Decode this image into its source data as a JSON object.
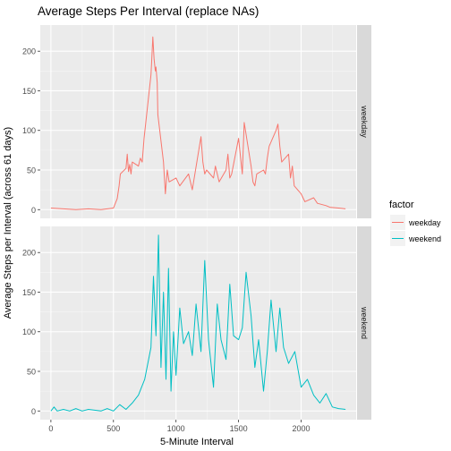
{
  "chart_data": {
    "type": "line",
    "title": "Average Steps Per Interval (replace NAs)",
    "xlabel": "5-Minute Interval",
    "ylabel": "Average Steps per Interval (across 61 days)",
    "xlim": [
      -85,
      2440
    ],
    "ylim": [
      -11,
      233
    ],
    "x_ticks": [
      0,
      500,
      1000,
      1500,
      2000
    ],
    "y_ticks": [
      0,
      50,
      100,
      150,
      200
    ],
    "grid": true,
    "legend": {
      "title": "factor",
      "placement": "right",
      "entries": [
        "weekday",
        "weekend"
      ]
    },
    "colors": {
      "weekday": "#F8766D",
      "weekend": "#00BFC4"
    },
    "panels": [
      {
        "label": "weekday",
        "series": [
          {
            "name": "weekday",
            "x": [
              0,
              100,
              200,
              300,
              400,
              500,
              530,
              545,
              555,
              600,
              610,
              620,
              630,
              640,
              650,
              700,
              715,
              730,
              745,
              800,
              805,
              815,
              825,
              835,
              840,
              850,
              855,
              900,
              915,
              930,
              945,
              1000,
              1030,
              1100,
              1130,
              1200,
              1215,
              1230,
              1245,
              1300,
              1315,
              1330,
              1345,
              1400,
              1415,
              1430,
              1445,
              1500,
              1530,
              1545,
              1600,
              1615,
              1630,
              1645,
              1700,
              1715,
              1730,
              1745,
              1800,
              1815,
              1830,
              1845,
              1900,
              1915,
              1930,
              1945,
              2000,
              2030,
              2100,
              2130,
              2200,
              2230,
              2300,
              2355
            ],
            "y": [
              2,
              1,
              0,
              1,
              0,
              2,
              14,
              30,
              45,
              52,
              70,
              48,
              57,
              45,
              60,
              55,
              65,
              60,
              90,
              170,
              185,
              218,
              190,
              175,
              180,
              160,
              120,
              60,
              20,
              50,
              35,
              40,
              30,
              45,
              25,
              92,
              60,
              45,
              50,
              40,
              55,
              45,
              35,
              50,
              70,
              40,
              45,
              90,
              45,
              110,
              55,
              35,
              30,
              45,
              50,
              45,
              65,
              80,
              100,
              108,
              80,
              60,
              70,
              40,
              55,
              30,
              20,
              10,
              15,
              8,
              5,
              3,
              2,
              1
            ]
          }
        ]
      },
      {
        "label": "weekend",
        "series": [
          {
            "name": "weekend",
            "x": [
              0,
              25,
              50,
              100,
              150,
              200,
              250,
              300,
              400,
              450,
              500,
              550,
              600,
              650,
              700,
              725,
              750,
              775,
              800,
              820,
              840,
              860,
              880,
              900,
              920,
              940,
              960,
              980,
              1000,
              1030,
              1060,
              1100,
              1130,
              1160,
              1200,
              1230,
              1260,
              1300,
              1330,
              1360,
              1400,
              1430,
              1460,
              1500,
              1530,
              1560,
              1600,
              1630,
              1660,
              1700,
              1730,
              1760,
              1800,
              1830,
              1860,
              1900,
              1950,
              2000,
              2050,
              2100,
              2150,
              2200,
              2250,
              2300,
              2355
            ],
            "y": [
              0,
              5,
              0,
              2,
              0,
              3,
              0,
              2,
              0,
              3,
              0,
              8,
              2,
              10,
              20,
              30,
              40,
              60,
              80,
              170,
              95,
              222,
              55,
              150,
              40,
              180,
              25,
              100,
              45,
              130,
              85,
              100,
              70,
              135,
              75,
              190,
              90,
              30,
              135,
              90,
              65,
              160,
              95,
              90,
              105,
              175,
              120,
              55,
              90,
              25,
              75,
              140,
              75,
              130,
              80,
              60,
              75,
              30,
              40,
              20,
              10,
              22,
              5,
              3,
              2
            ]
          }
        ]
      }
    ]
  }
}
